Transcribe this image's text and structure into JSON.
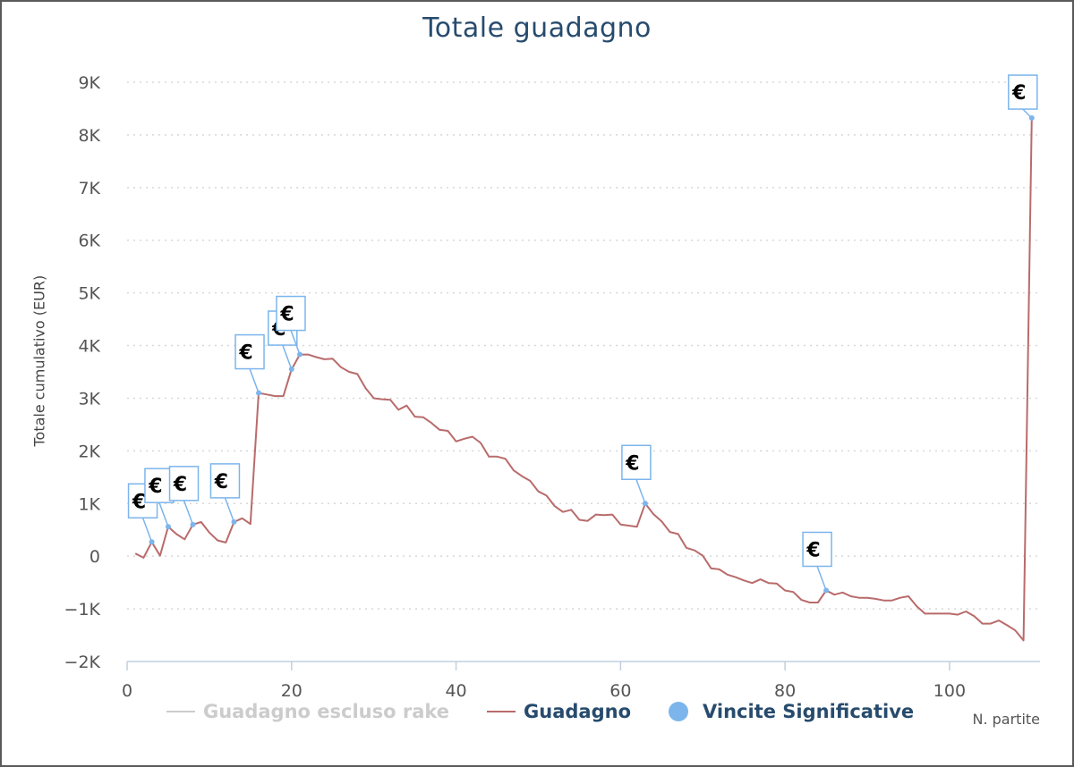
{
  "chart_data": {
    "type": "line",
    "title": "Totale guadagno",
    "xlabel": "N. partite",
    "ylabel": "Totale cumulativo (EUR)",
    "xlim": [
      0,
      111
    ],
    "ylim": [
      -2000,
      9000
    ],
    "x_ticks": [
      0,
      20,
      40,
      60,
      80,
      100
    ],
    "y_ticks": [
      -2000,
      -1000,
      0,
      1000,
      2000,
      3000,
      4000,
      5000,
      6000,
      7000,
      8000,
      9000
    ],
    "y_tick_labels": [
      "−2K",
      "−1K",
      "0",
      "1K",
      "2K",
      "3K",
      "4K",
      "5K",
      "6K",
      "7K",
      "8K",
      "9K"
    ],
    "grid": "horizontal dotted",
    "legend_position": "bottom",
    "series": [
      {
        "name": "Guadagno escluso rake",
        "color": "#cccccc",
        "visible": false,
        "x": [],
        "y": []
      },
      {
        "name": "Guadagno",
        "color": "#b96b6b",
        "visible": true,
        "x": [
          1,
          2,
          3,
          4,
          5,
          6,
          7,
          8,
          9,
          10,
          11,
          12,
          13,
          14,
          15,
          16,
          17,
          18,
          19,
          20,
          21,
          22,
          23,
          24,
          25,
          26,
          27,
          28,
          29,
          30,
          31,
          32,
          33,
          34,
          35,
          36,
          37,
          38,
          39,
          40,
          41,
          42,
          43,
          44,
          45,
          46,
          47,
          48,
          49,
          50,
          51,
          52,
          53,
          54,
          55,
          56,
          57,
          58,
          59,
          60,
          61,
          62,
          63,
          64,
          65,
          66,
          67,
          68,
          69,
          70,
          71,
          72,
          73,
          74,
          75,
          76,
          77,
          78,
          79,
          80,
          81,
          82,
          83,
          84,
          85,
          86,
          87,
          88,
          89,
          90,
          91,
          92,
          93,
          94,
          95,
          96,
          97,
          98,
          99,
          100,
          101,
          102,
          103,
          104,
          105,
          106,
          107,
          108,
          109,
          110
        ],
        "y": [
          50,
          -30,
          270,
          10,
          560,
          420,
          320,
          600,
          650,
          450,
          300,
          260,
          650,
          720,
          610,
          3100,
          3070,
          3040,
          3040,
          3550,
          3830,
          3830,
          3780,
          3740,
          3750,
          3590,
          3500,
          3460,
          3190,
          3000,
          2980,
          2970,
          2780,
          2860,
          2650,
          2640,
          2530,
          2400,
          2380,
          2180,
          2230,
          2270,
          2150,
          1890,
          1890,
          1850,
          1630,
          1520,
          1430,
          1230,
          1150,
          950,
          840,
          880,
          690,
          670,
          790,
          780,
          790,
          600,
          580,
          560,
          1000,
          800,
          660,
          460,
          420,
          160,
          110,
          10,
          -230,
          -250,
          -350,
          -400,
          -460,
          -510,
          -440,
          -510,
          -520,
          -650,
          -680,
          -830,
          -880,
          -880,
          -650,
          -730,
          -690,
          -760,
          -790,
          -790,
          -810,
          -840,
          -840,
          -790,
          -760,
          -950,
          -1090,
          -1090,
          -1090,
          -1090,
          -1110,
          -1050,
          -1140,
          -1280,
          -1280,
          -1220,
          -1310,
          -1410,
          -1600,
          8320
        ]
      },
      {
        "name": "Vincite Significative",
        "color": "#7cb5ec",
        "type": "flags",
        "label": "€",
        "x": [
          3,
          5,
          8,
          13,
          16,
          20,
          21,
          63,
          85,
          110
        ],
        "y": [
          270,
          560,
          600,
          650,
          3100,
          3550,
          3830,
          1000,
          -650,
          8320
        ]
      }
    ]
  }
}
